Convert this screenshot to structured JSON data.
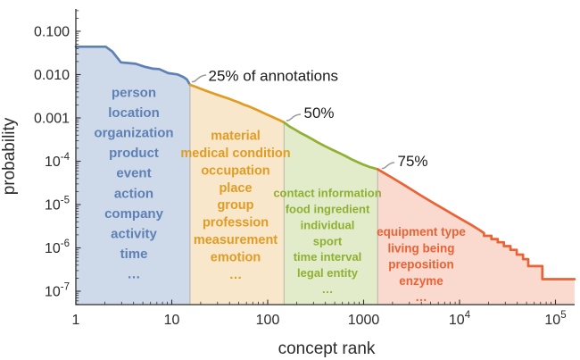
{
  "chart_data": {
    "type": "area",
    "title": "",
    "xlabel": "concept rank",
    "ylabel": "probability",
    "x_scale": "log",
    "y_scale": "log",
    "x_range": [
      1,
      158000
    ],
    "y_range": [
      5e-08,
      0.33
    ],
    "grid": false,
    "x_ticks": [
      {
        "value": 1,
        "label": "1"
      },
      {
        "value": 10,
        "label": "10"
      },
      {
        "value": 100,
        "label": "100"
      },
      {
        "value": 1000,
        "label": "1000"
      },
      {
        "value": 10000,
        "label": "10",
        "exp": "4"
      },
      {
        "value": 100000,
        "label": "10",
        "exp": "5"
      }
    ],
    "y_ticks": [
      {
        "value": 0.1,
        "label": "0.100"
      },
      {
        "value": 0.01,
        "label": "0.010"
      },
      {
        "value": 0.001,
        "label": "0.001"
      },
      {
        "value": 0.0001,
        "label": "10",
        "exp": "-4"
      },
      {
        "value": 1e-05,
        "label": "10",
        "exp": "-5"
      },
      {
        "value": 1e-06,
        "label": "10",
        "exp": "-6"
      },
      {
        "value": 1e-07,
        "label": "10",
        "exp": "-7"
      }
    ],
    "quartile_annotations": [
      {
        "text": "25% of annotations",
        "boundary_rank": 15.5,
        "boundary_probability": 0.0058
      },
      {
        "text": "50%",
        "boundary_rank": 148,
        "boundary_probability": 0.00079
      },
      {
        "text": "75%",
        "boundary_rank": 1400,
        "boundary_probability": 6.55e-05
      }
    ],
    "regions": [
      {
        "id": "q1",
        "color": "#5e81b5",
        "fill_opacity": 0.3,
        "rank_range": [
          1,
          15.5
        ],
        "concepts": [
          "person",
          "location",
          "organization",
          "product",
          "event",
          "action",
          "company",
          "activity",
          "time",
          "…"
        ],
        "points": [
          [
            1,
            0.044
          ],
          [
            2.05,
            0.044
          ],
          [
            2.4,
            0.034
          ],
          [
            2.95,
            0.0192
          ],
          [
            4.2,
            0.0178
          ],
          [
            5.2,
            0.0152
          ],
          [
            6.4,
            0.0137
          ],
          [
            7.4,
            0.0134
          ],
          [
            9.2,
            0.0108
          ],
          [
            11.5,
            0.0101
          ],
          [
            13.3,
            0.0087
          ],
          [
            14.4,
            0.0077
          ],
          [
            15.5,
            0.0058
          ]
        ]
      },
      {
        "id": "q2",
        "color": "#e19c24",
        "fill_opacity": 0.24,
        "rank_range": [
          15.5,
          148
        ],
        "concepts": [
          "material",
          "medical condition",
          "occupation",
          "place",
          "group",
          "profession",
          "measurement",
          "emotion",
          "…"
        ],
        "points": [
          [
            15.5,
            0.0058
          ],
          [
            17.5,
            0.0053
          ],
          [
            20,
            0.0047
          ],
          [
            23,
            0.0042
          ],
          [
            26,
            0.0038
          ],
          [
            30,
            0.0034
          ],
          [
            34,
            0.0031
          ],
          [
            39,
            0.0028
          ],
          [
            44,
            0.00252
          ],
          [
            50,
            0.00228
          ],
          [
            57,
            0.002
          ],
          [
            64,
            0.00184
          ],
          [
            72,
            0.00164
          ],
          [
            81,
            0.00146
          ],
          [
            92,
            0.00128
          ],
          [
            104,
            0.00113
          ],
          [
            118,
            0.001
          ],
          [
            133,
            0.00089
          ],
          [
            148,
            0.00079
          ]
        ]
      },
      {
        "id": "q3",
        "color": "#8fb032",
        "fill_opacity": 0.26,
        "rank_range": [
          148,
          1400
        ],
        "concepts": [
          "contact information",
          "food ingredient",
          "individual",
          "sport",
          "time interval",
          "legal entity",
          "…"
        ],
        "points": [
          [
            148,
            0.00079
          ],
          [
            168,
            0.00064
          ],
          [
            192,
            0.00054
          ],
          [
            220,
            0.00045
          ],
          [
            252,
            0.000385
          ],
          [
            290,
            0.000325
          ],
          [
            333,
            0.000272
          ],
          [
            382,
            0.000232
          ],
          [
            440,
            0.000198
          ],
          [
            505,
            0.000172
          ],
          [
            580,
            0.000148
          ],
          [
            668,
            0.000127
          ],
          [
            768,
            0.000108
          ],
          [
            884,
            9.35e-05
          ],
          [
            1017,
            8.18e-05
          ],
          [
            1170,
            7.3e-05
          ],
          [
            1400,
            6.55e-05
          ]
        ]
      },
      {
        "id": "q4",
        "color": "#eb6235",
        "fill_opacity": 0.24,
        "rank_range": [
          1400,
          158000
        ],
        "concepts": [
          "equipment type",
          "living being",
          "preposition",
          "enzyme",
          "…"
        ],
        "points": [
          [
            1400,
            6.55e-05
          ],
          [
            1650,
            5.3e-05
          ],
          [
            1950,
            4.25e-05
          ],
          [
            2300,
            3.42e-05
          ],
          [
            2750,
            2.68e-05
          ],
          [
            3300,
            2.09e-05
          ],
          [
            4000,
            1.6e-05
          ],
          [
            4850,
            1.24e-05
          ],
          [
            5900,
            9.6e-06
          ],
          [
            7200,
            7.4e-06
          ],
          [
            8800,
            5.7e-06
          ],
          [
            10800,
            4.4e-06
          ],
          [
            13200,
            3.4e-06
          ],
          [
            16100,
            2.6e-06
          ],
          [
            18000,
            2.2e-06
          ],
          [
            18000,
            1.9e-06
          ],
          [
            21500,
            1.9e-06
          ],
          [
            21500,
            1.6e-06
          ],
          [
            25000,
            1.6e-06
          ],
          [
            25000,
            1.35e-06
          ],
          [
            29000,
            1.35e-06
          ],
          [
            29000,
            1.1e-06
          ],
          [
            34000,
            1.1e-06
          ],
          [
            34000,
            9e-07
          ],
          [
            39500,
            9e-07
          ],
          [
            39500,
            7e-07
          ],
          [
            46000,
            7e-07
          ],
          [
            46000,
            5.5e-07
          ],
          [
            52000,
            5.5e-07
          ],
          [
            52000,
            3.8e-07
          ],
          [
            73000,
            3.8e-07
          ],
          [
            73000,
            1.9e-07
          ],
          [
            158000,
            1.9e-07
          ]
        ]
      }
    ]
  },
  "style": {
    "background": "#ffffff",
    "axis_color": "#2f2f2f",
    "tick_label_color": "#2b2b2b",
    "axis_title_color": "#2b2b2b",
    "annotation_text_color": "#1a1a1a",
    "callout_color": "#9a9a9a",
    "boundary_line_color": "rgba(110,110,110,0.45)"
  }
}
